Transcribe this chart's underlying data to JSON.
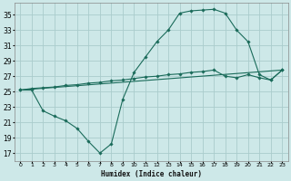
{
  "xlabel": "Humidex (Indice chaleur)",
  "background_color": "#cde8e8",
  "grid_color": "#aacccc",
  "line_color": "#1a6b5a",
  "xlim": [
    -0.5,
    23.5
  ],
  "ylim": [
    16,
    36.5
  ],
  "xticks": [
    0,
    1,
    2,
    3,
    4,
    5,
    6,
    7,
    8,
    9,
    10,
    11,
    12,
    13,
    14,
    15,
    16,
    17,
    18,
    19,
    20,
    21,
    22,
    23
  ],
  "yticks": [
    17,
    19,
    21,
    23,
    25,
    27,
    29,
    31,
    33,
    35
  ],
  "line1_x": [
    0,
    1,
    2,
    3,
    4,
    5,
    6,
    7,
    8,
    9,
    10,
    11,
    12,
    13,
    14,
    15,
    16,
    17,
    18,
    19,
    20,
    21,
    22,
    23
  ],
  "line1_y": [
    25.2,
    25.2,
    22.5,
    21.8,
    21.2,
    20.2,
    18.5,
    17.0,
    18.2,
    24.0,
    27.5,
    29.5,
    31.5,
    33.0,
    35.2,
    35.5,
    35.6,
    35.7,
    35.2,
    33.0,
    31.5,
    27.2,
    26.5,
    27.8
  ],
  "line2_x": [
    0,
    1,
    2,
    3,
    4,
    5,
    6,
    7,
    8,
    9,
    10,
    11,
    12,
    13,
    14,
    15,
    16,
    17,
    18,
    19,
    20,
    21,
    22,
    23
  ],
  "line2_y": [
    25.2,
    25.4,
    25.5,
    25.6,
    25.8,
    25.9,
    26.1,
    26.2,
    26.4,
    26.5,
    26.7,
    26.9,
    27.0,
    27.2,
    27.3,
    27.5,
    27.6,
    27.8,
    27.0,
    26.8,
    27.2,
    26.8,
    26.5,
    27.8
  ],
  "line3_x": [
    0,
    23
  ],
  "line3_y": [
    25.2,
    27.8
  ]
}
